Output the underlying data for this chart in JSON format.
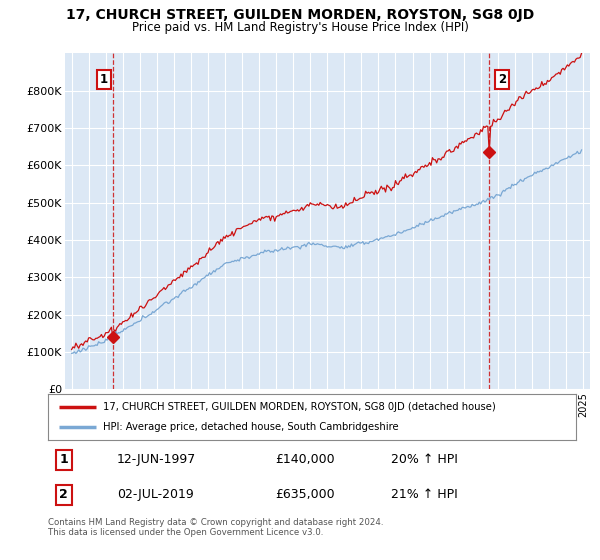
{
  "title_line1": "17, CHURCH STREET, GUILDEN MORDEN, ROYSTON, SG8 0JD",
  "title_line2": "Price paid vs. HM Land Registry's House Price Index (HPI)",
  "background_color": "#dce8f5",
  "plot_background": "#dce8f5",
  "ylabel": "",
  "xlabel": "",
  "ylim": [
    0,
    900000
  ],
  "yticks": [
    0,
    100000,
    200000,
    300000,
    400000,
    500000,
    600000,
    700000,
    800000
  ],
  "ytick_labels": [
    "£0",
    "£100K",
    "£200K",
    "£300K",
    "£400K",
    "£500K",
    "£600K",
    "£700K",
    "£800K"
  ],
  "hpi_color": "#7aa8d4",
  "price_color": "#cc1111",
  "marker1_x": 1997.44,
  "marker1_y": 140000,
  "marker2_x": 2019.5,
  "marker2_y": 635000,
  "legend_line1": "17, CHURCH STREET, GUILDEN MORDEN, ROYSTON, SG8 0JD (detached house)",
  "legend_line2": "HPI: Average price, detached house, South Cambridgeshire",
  "table_row1": [
    "1",
    "12-JUN-1997",
    "£140,000",
    "20% ↑ HPI"
  ],
  "table_row2": [
    "2",
    "02-JUL-2019",
    "£635,000",
    "21% ↑ HPI"
  ],
  "footnote": "Contains HM Land Registry data © Crown copyright and database right 2024.\nThis data is licensed under the Open Government Licence v3.0.",
  "xlim_start": 1994.6,
  "xlim_end": 2025.4
}
